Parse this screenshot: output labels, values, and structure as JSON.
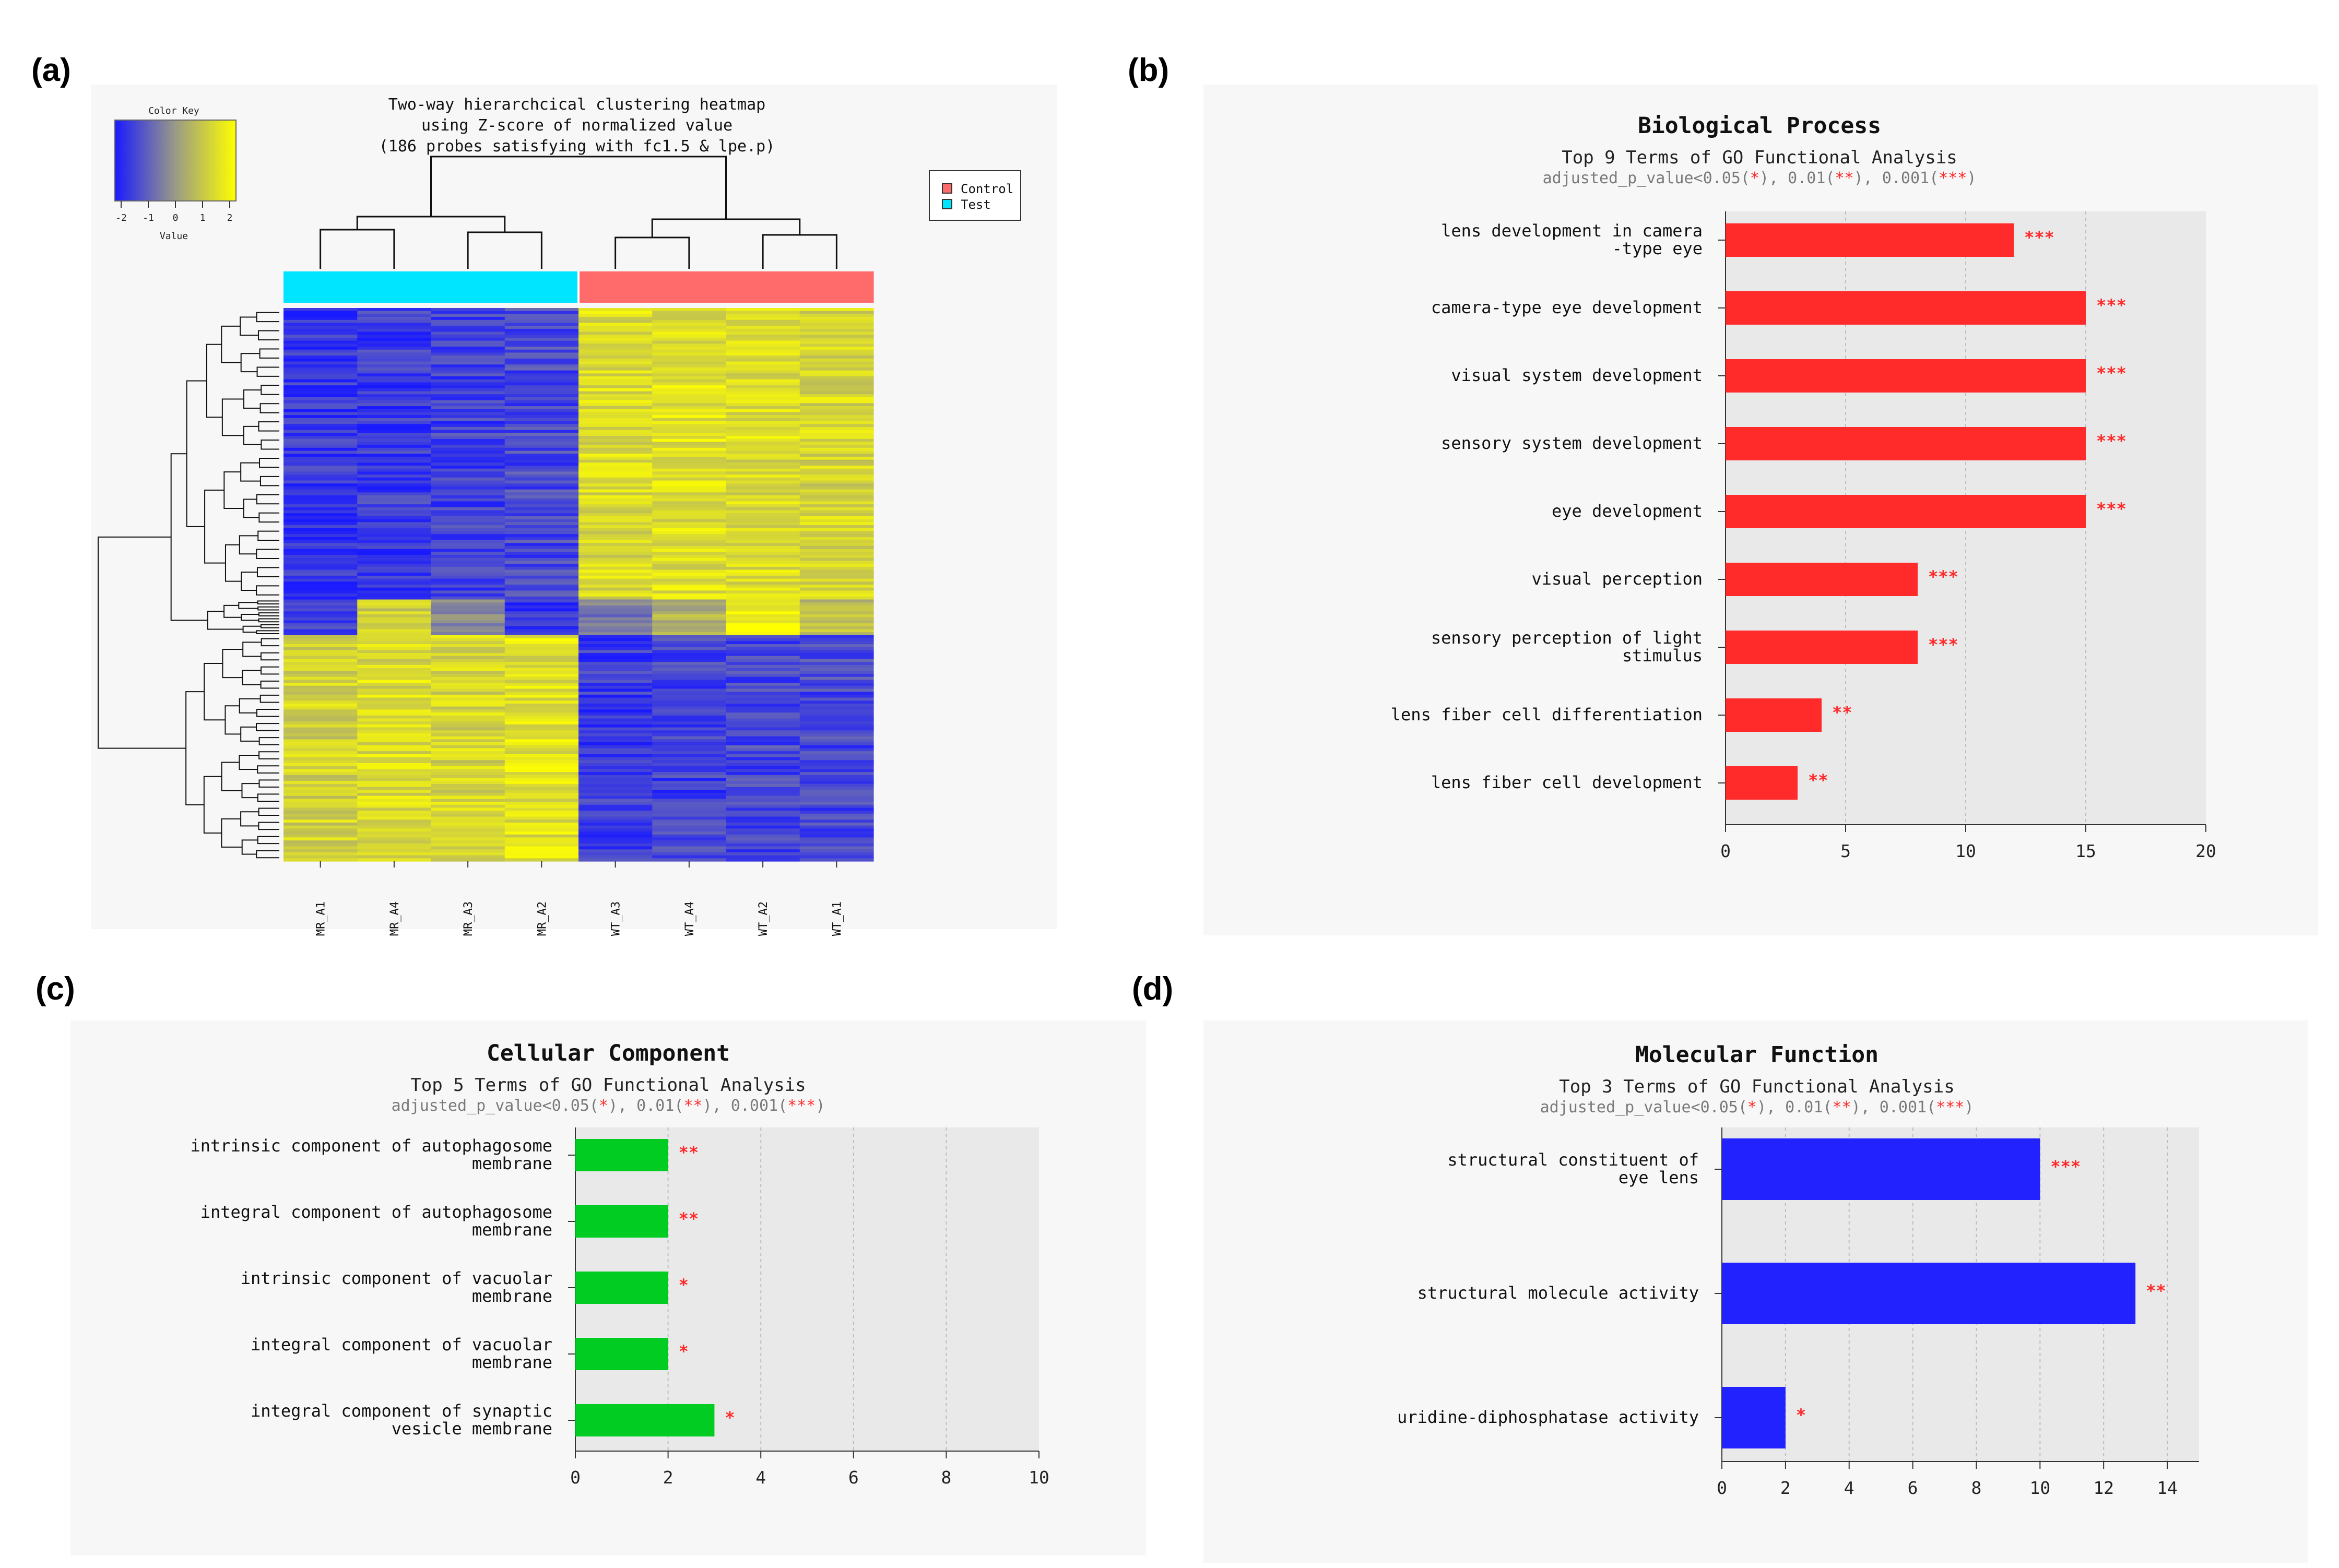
{
  "panel_labels": [
    "(a)",
    "(b)",
    "(c)",
    "(d)"
  ],
  "chart_data": [
    {
      "id": "heatmap",
      "type": "heatmap",
      "title_lines": [
        "Two-way hierarchcical clustering heatmap",
        "using Z-score of normalized value",
        "(186 probes satisfying with fc1.5 & lpe.p)"
      ],
      "color_key": {
        "title": "Color Key",
        "xlabel": "Value",
        "ticks": [
          "-2",
          "-1",
          "0",
          "1",
          "2"
        ],
        "colors": [
          "#1a1aff",
          "#9a9a86",
          "#ffff00"
        ]
      },
      "legend": [
        {
          "label": "Control",
          "color": "#ff6b6b"
        },
        {
          "label": "Test",
          "color": "#00e5ff"
        }
      ],
      "samples": [
        "MR_A1",
        "MR_A4",
        "MR_A3",
        "MR_A2",
        "WT_A3",
        "WT_A4",
        "WT_A2",
        "WT_A1"
      ],
      "sample_groups": [
        "Test",
        "Test",
        "Test",
        "Test",
        "Control",
        "Control",
        "Control",
        "Control"
      ],
      "probe_count": 186,
      "row_blocks": [
        {
          "rows": 98,
          "z": [
            -1.6,
            -1.5,
            -1.4,
            -1.3,
            1.3,
            1.4,
            1.3,
            1.2
          ],
          "dev": [
            [
              0.45,
              15,
              -1.9
            ],
            [
              0.35,
              28,
              0.4
            ],
            [
              0.3,
              40,
              1.9
            ],
            [
              0.3,
              52,
              0.3
            ],
            [
              0.3,
              12,
              0.2
            ],
            [
              0.3,
              22,
              2.0
            ],
            [
              0.3,
              68,
              1.5
            ]
          ]
        },
        {
          "rows": 12,
          "z": [
            -1.4,
            1.0,
            -0.2,
            -1.6,
            -0.5,
            0.4,
            1.9,
            0.6
          ],
          "dev": []
        },
        {
          "rows": 76,
          "z": [
            1.1,
            1.3,
            1.2,
            1.4,
            -1.5,
            -1.4,
            -1.3,
            -1.3
          ],
          "dev": [
            [
              0.4,
              22,
              2.0
            ],
            [
              0.4,
              28,
              2.0
            ],
            [
              0.3,
              8,
              -0.5
            ],
            [
              0.3,
              10,
              -0.4
            ],
            [
              0.3,
              12,
              -1.0
            ],
            [
              0.3,
              40,
              -0.3
            ],
            [
              0.3,
              12,
              -1.0
            ]
          ]
        }
      ]
    },
    {
      "id": "biological-process",
      "type": "bar",
      "orientation": "horizontal",
      "title": "Biological Process",
      "subtitle": "Top 9 Terms of GO Functional Analysis",
      "significance_note": [
        "adjusted_p_value<0.05(",
        "*",
        "), 0.01(",
        "**",
        "), 0.001(",
        "***",
        ")"
      ],
      "categories": [
        [
          "lens development in camera",
          "-type eye"
        ],
        [
          "camera-type eye development"
        ],
        [
          "visual system development"
        ],
        [
          "sensory system development"
        ],
        [
          "eye development"
        ],
        [
          "visual perception"
        ],
        [
          "sensory perception of light",
          "stimulus"
        ],
        [
          "lens fiber cell differentiation"
        ],
        [
          "lens fiber cell development"
        ]
      ],
      "values": [
        12,
        15,
        15,
        15,
        15,
        8,
        8,
        4,
        3
      ],
      "significance": [
        "***",
        "***",
        "***",
        "***",
        "***",
        "***",
        "***",
        "**",
        "**"
      ],
      "xlim": [
        0,
        20
      ],
      "xticks": [
        "0",
        "5",
        "10",
        "15",
        "20"
      ],
      "bar_color": "#ff2a2a"
    },
    {
      "id": "cellular-component",
      "type": "bar",
      "orientation": "horizontal",
      "title": "Cellular Component",
      "subtitle": "Top 5 Terms of GO Functional Analysis",
      "significance_note": [
        "adjusted_p_value<0.05(",
        "*",
        "), 0.01(",
        "**",
        "), 0.001(",
        "***",
        ")"
      ],
      "categories": [
        [
          "intrinsic component of autophagosome",
          "membrane"
        ],
        [
          "integral component of autophagosome",
          "membrane"
        ],
        [
          "intrinsic component of vacuolar",
          "membrane"
        ],
        [
          "integral component of vacuolar",
          "membrane"
        ],
        [
          "integral component of synaptic",
          "vesicle membrane"
        ]
      ],
      "values": [
        2,
        2,
        2,
        2,
        3
      ],
      "significance": [
        "**",
        "**",
        "*",
        "*",
        "*"
      ],
      "xlim": [
        0,
        10
      ],
      "xticks": [
        "0",
        "2",
        "4",
        "6",
        "8",
        "10"
      ],
      "bar_color": "#00cc22"
    },
    {
      "id": "molecular-function",
      "type": "bar",
      "orientation": "horizontal",
      "title": "Molecular Function",
      "subtitle": "Top 3 Terms of GO Functional Analysis",
      "significance_note": [
        "adjusted_p_value<0.05(",
        "*",
        "), 0.01(",
        "**",
        "), 0.001(",
        "***",
        ")"
      ],
      "categories": [
        [
          "structural constituent of",
          "eye lens"
        ],
        [
          "structural molecule activity"
        ],
        [
          "uridine-diphosphatase activity"
        ]
      ],
      "values": [
        10,
        13,
        2
      ],
      "significance": [
        "***",
        "**",
        "*"
      ],
      "xlim": [
        0,
        15
      ],
      "xticks": [
        "0",
        "2",
        "4",
        "6",
        "8",
        "10",
        "12",
        "14"
      ],
      "bar_color": "#2222ff"
    }
  ]
}
